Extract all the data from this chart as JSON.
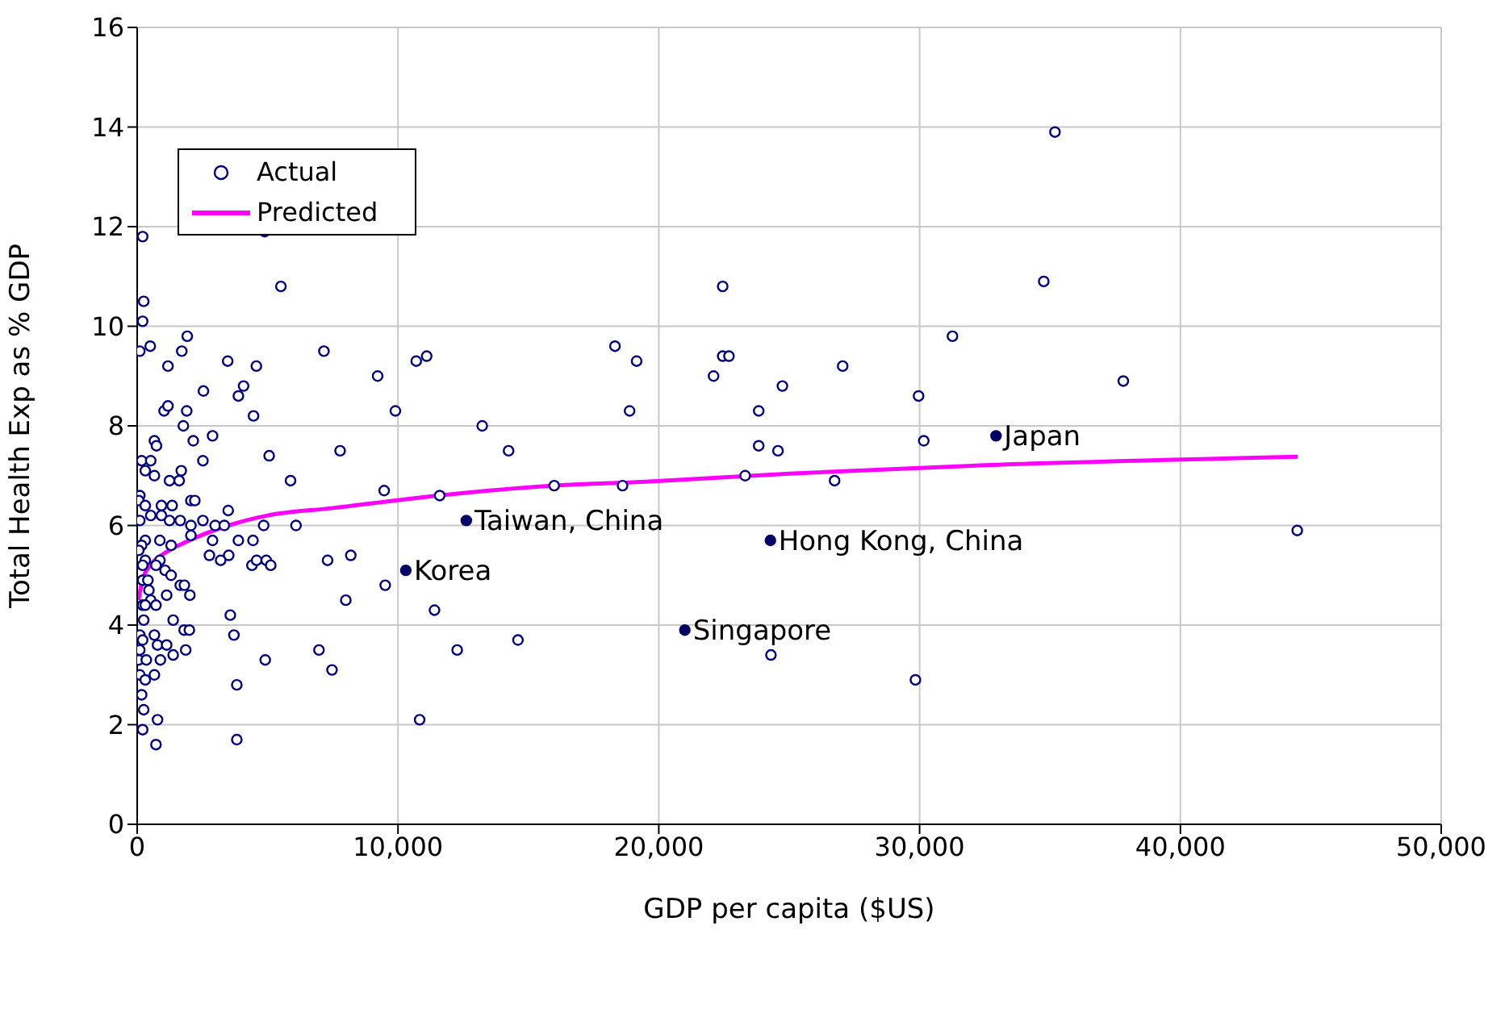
{
  "chart_data": {
    "type": "scatter",
    "xlabel": "GDP per capita ($US)",
    "ylabel": "Total Health Exp as % GDP",
    "xlim": [
      0,
      50000
    ],
    "xticks": [
      0,
      {
        "value": 10000,
        "label": "10,000"
      },
      {
        "value": 20000,
        "label": "20,000"
      },
      {
        "value": 30000,
        "label": "30,000"
      },
      {
        "value": 40000,
        "label": "40,000"
      },
      {
        "value": 50000,
        "label": "50,000"
      }
    ],
    "ylim": [
      0,
      16
    ],
    "yticks": [
      0,
      2,
      4,
      6,
      8,
      10,
      12,
      14,
      16
    ],
    "grid": true,
    "legend": "top left",
    "series": [
      {
        "name": "Actual",
        "marker": "circle",
        "color": "#000080",
        "x": [
          35190,
          34760,
          37810,
          31260,
          29960,
          30160,
          27050,
          24740,
          22450,
          22450,
          22690,
          22100,
          23830,
          23830,
          24570,
          23310,
          26740,
          24300,
          29840,
          44480,
          18320,
          19150,
          18880,
          18610,
          15990,
          14240,
          13230,
          11100,
          10700,
          9900,
          9220,
          9470,
          11600,
          9510,
          11400,
          12270,
          14600,
          10830,
          210,
          4890,
          5510,
          250,
          210,
          1920,
          500,
          100,
          1710,
          1180,
          3470,
          4570,
          7160,
          2540,
          4080,
          3880,
          1030,
          1180,
          1900,
          1770,
          2150,
          4460,
          660,
          740,
          2890,
          7780,
          5060,
          170,
          520,
          2520,
          310,
          660,
          1690,
          1240,
          1610,
          5880,
          100,
          60,
          930,
          1340,
          2060,
          2210,
          3490,
          310,
          100,
          520,
          930,
          1240,
          1650,
          2060,
          2520,
          2990,
          3340,
          4850,
          6090,
          2060,
          2890,
          3880,
          4440,
          870,
          1300,
          310,
          170,
          60,
          310,
          870,
          2770,
          3510,
          3200,
          4400,
          4580,
          4950,
          5120,
          7300,
          8190,
          210,
          720,
          1070,
          1300,
          210,
          410,
          1650,
          1810,
          2020,
          1130,
          8000,
          520,
          720,
          210,
          3570,
          1380,
          250,
          1800,
          2000,
          660,
          3710,
          100,
          450,
          310,
          210,
          100,
          780,
          1130,
          1860,
          1380,
          6970,
          60,
          350,
          890,
          4910,
          7470,
          660,
          100,
          310,
          3820,
          170,
          250,
          780,
          210,
          720,
          3820
        ],
        "values": [
          13.9,
          10.9,
          8.9,
          9.8,
          8.6,
          7.7,
          9.2,
          8.8,
          10.8,
          9.4,
          9.4,
          9.0,
          8.3,
          7.6,
          7.5,
          7.0,
          6.9,
          3.4,
          2.9,
          5.9,
          9.6,
          9.3,
          8.3,
          6.8,
          6.8,
          7.5,
          8.0,
          9.4,
          9.3,
          8.3,
          9.0,
          6.7,
          6.6,
          4.8,
          4.3,
          3.5,
          3.7,
          2.1,
          11.8,
          11.9,
          10.8,
          10.5,
          10.1,
          9.8,
          9.6,
          9.5,
          9.5,
          9.2,
          9.3,
          9.2,
          9.5,
          8.7,
          8.8,
          8.6,
          8.3,
          8.4,
          8.3,
          8.0,
          7.7,
          8.2,
          7.7,
          7.6,
          7.8,
          7.5,
          7.4,
          7.3,
          7.3,
          7.3,
          7.1,
          7.0,
          7.1,
          6.9,
          6.9,
          6.9,
          6.6,
          6.5,
          6.4,
          6.4,
          6.5,
          6.5,
          6.3,
          6.4,
          6.1,
          6.2,
          6.2,
          6.1,
          6.1,
          6.0,
          6.1,
          6.0,
          6.0,
          6.0,
          6.0,
          5.8,
          5.7,
          5.7,
          5.7,
          5.7,
          5.6,
          5.7,
          5.6,
          5.5,
          5.3,
          5.3,
          5.4,
          5.4,
          5.3,
          5.2,
          5.3,
          5.3,
          5.2,
          5.3,
          5.4,
          5.2,
          5.2,
          5.1,
          5.0,
          4.9,
          4.9,
          4.8,
          4.8,
          4.6,
          4.6,
          4.5,
          4.5,
          4.4,
          4.4,
          4.2,
          4.1,
          4.1,
          3.9,
          3.9,
          3.8,
          3.8,
          3.8,
          4.7,
          4.4,
          3.7,
          3.5,
          3.6,
          3.6,
          3.5,
          3.4,
          3.5,
          3.3,
          3.3,
          3.3,
          3.3,
          3.1,
          3.0,
          3.0,
          2.9,
          2.8,
          2.6,
          2.3,
          2.1,
          1.9,
          1.6,
          1.7
        ]
      },
      {
        "name": "Predicted",
        "type": "line",
        "marker": "none",
        "line_style": "solid",
        "color": "#ff00ff",
        "x": [
          50,
          200,
          500,
          930,
          2000,
          3500,
          5000,
          7500,
          10500,
          16000,
          19500,
          25000,
          32000,
          44500
        ],
        "values": [
          4.5,
          4.9,
          5.2,
          5.4,
          5.7,
          6.0,
          6.2,
          6.35,
          6.54,
          6.8,
          6.88,
          7.04,
          7.2,
          7.38
        ]
      },
      {
        "marker": "circle",
        "color": "#000066",
        "x": [
          32930,
          24280,
          21000,
          12620,
          10300
        ],
        "values": [
          7.8,
          5.7,
          3.9,
          6.1,
          5.1
        ]
      }
    ],
    "annotations": [
      {
        "text": "Japan",
        "x": 32930,
        "y": 7.8
      },
      {
        "text": "Hong Kong, China",
        "x": 24280,
        "y": 5.7
      },
      {
        "text": "Singapore",
        "x": 21000,
        "y": 3.9
      },
      {
        "text": "Taiwan, China",
        "x": 12620,
        "y": 6.1
      },
      {
        "text": "Korea",
        "x": 10300,
        "y": 5.1
      }
    ]
  }
}
